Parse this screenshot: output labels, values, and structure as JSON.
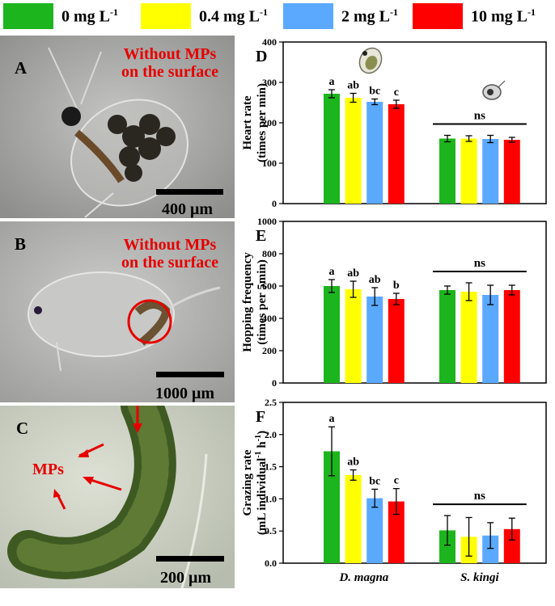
{
  "legend": {
    "items": [
      {
        "label": "0 mg L",
        "sup": "-1",
        "color": "#1db51d"
      },
      {
        "label": "0.4 mg L",
        "sup": "-1",
        "color": "#ffff00"
      },
      {
        "label": "2 mg L",
        "sup": "-1",
        "color": "#5aa9ff"
      },
      {
        "label": "10 mg L",
        "sup": "-1",
        "color": "#ff0000"
      }
    ]
  },
  "photos": {
    "A": {
      "letter": "A",
      "note_line1": "Without MPs",
      "note_line2": "on the surface",
      "scale": "400 μm"
    },
    "B": {
      "letter": "B",
      "note_line1": "Without MPs",
      "note_line2": "on the surface",
      "scale": "1000 μm"
    },
    "C": {
      "letter": "C",
      "note": "MPs",
      "scale": "200 μm"
    }
  },
  "chart_data": [
    {
      "panel": "D",
      "type": "bar",
      "ylabel_line1": "Heart rate",
      "ylabel_line2": "(times per min)",
      "ylim": [
        0,
        400
      ],
      "yticks": [
        0,
        100,
        200,
        300,
        400
      ],
      "groups": [
        "D. magna",
        "S. kingi"
      ],
      "series": [
        {
          "name": "0 mg L-1",
          "values": [
            272,
            161
          ],
          "errors": [
            10,
            8
          ]
        },
        {
          "name": "0.4 mg L-1",
          "values": [
            262,
            161
          ],
          "errors": [
            11,
            7
          ]
        },
        {
          "name": "2 mg L-1",
          "values": [
            252,
            160
          ],
          "errors": [
            7,
            9
          ]
        },
        {
          "name": "10 mg L-1",
          "values": [
            246,
            158
          ],
          "errors": [
            10,
            6
          ]
        }
      ],
      "letters": [
        [
          "a",
          "ab",
          "bc",
          "c"
        ],
        []
      ],
      "ns_label": "ns"
    },
    {
      "panel": "E",
      "type": "bar",
      "ylabel_line1": "Hopping frequency",
      "ylabel_line2": "(times per 5min)",
      "ylim": [
        0,
        1000
      ],
      "yticks": [
        0,
        200,
        400,
        600,
        800,
        1000
      ],
      "groups": [
        "D. magna",
        "S. kingi"
      ],
      "series": [
        {
          "name": "0 mg L-1",
          "values": [
            600,
            575
          ],
          "errors": [
            40,
            25
          ]
        },
        {
          "name": "0.4 mg L-1",
          "values": [
            580,
            565
          ],
          "errors": [
            50,
            55
          ]
        },
        {
          "name": "2 mg L-1",
          "values": [
            535,
            545
          ],
          "errors": [
            55,
            60
          ]
        },
        {
          "name": "10 mg L-1",
          "values": [
            520,
            575
          ],
          "errors": [
            35,
            30
          ]
        }
      ],
      "letters": [
        [
          "a",
          "ab",
          "ab",
          "b"
        ],
        []
      ],
      "ns_label": "ns"
    },
    {
      "panel": "F",
      "type": "bar",
      "ylabel_line1": "Grazing rate",
      "ylabel_line2": "(mL individual",
      "ylabel_sup1": "-1",
      "ylabel_mid": " h",
      "ylabel_sup2": "-1",
      "ylabel_end": ")",
      "ylim": [
        0,
        2.5
      ],
      "yticks": [
        "0.0",
        "0.5",
        "1.0",
        "1.5",
        "2.0",
        "2.5"
      ],
      "groups": [
        "D. magna",
        "S. kingi"
      ],
      "series": [
        {
          "name": "0 mg L-1",
          "values": [
            1.74,
            0.51
          ],
          "errors": [
            0.38,
            0.23
          ]
        },
        {
          "name": "0.4 mg L-1",
          "values": [
            1.37,
            0.41
          ],
          "errors": [
            0.08,
            0.3
          ]
        },
        {
          "name": "2 mg L-1",
          "values": [
            1.01,
            0.43
          ],
          "errors": [
            0.14,
            0.2
          ]
        },
        {
          "name": "10 mg L-1",
          "values": [
            0.96,
            0.53
          ],
          "errors": [
            0.2,
            0.17
          ]
        }
      ],
      "letters": [
        [
          "a",
          "ab",
          "bc",
          "c"
        ],
        []
      ],
      "ns_label": "ns"
    }
  ]
}
